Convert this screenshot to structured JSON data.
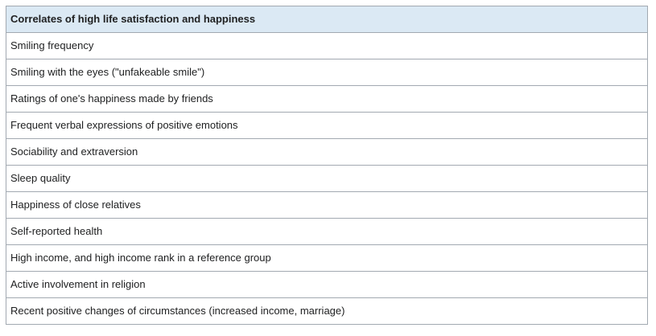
{
  "table": {
    "header": "Correlates of high life satisfaction and happiness",
    "rows": [
      "Smiling frequency",
      "Smiling with the eyes (\"unfakeable smile\")",
      "Ratings of one's happiness made by friends",
      "Frequent verbal expressions of positive emotions",
      "Sociability and extraversion",
      "Sleep quality",
      "Happiness of close relatives",
      "Self-reported health",
      "High income, and high income rank in a reference group",
      "Active involvement in religion",
      "Recent positive changes of circumstances (increased income, marriage)"
    ]
  },
  "colors": {
    "header_background": "#dbe9f4",
    "border": "#a2a9b1",
    "text": "#202122"
  }
}
